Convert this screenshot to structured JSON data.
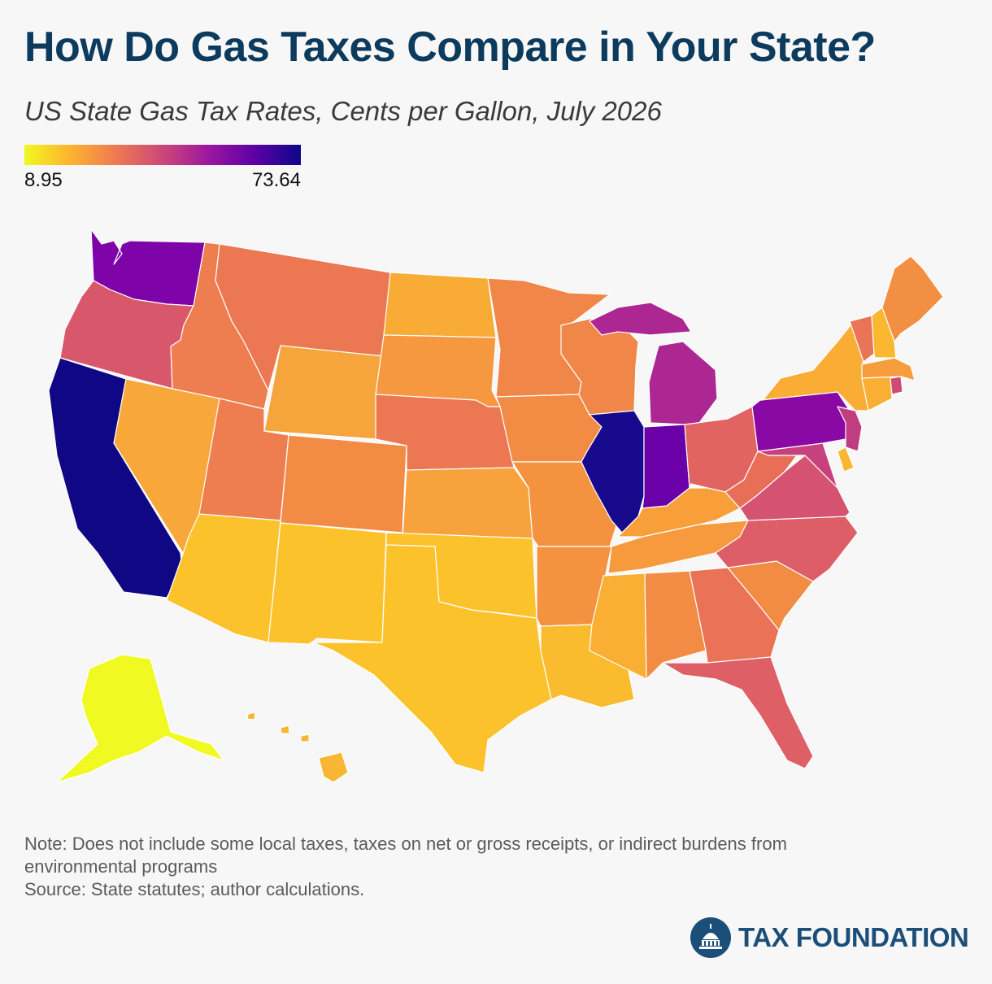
{
  "header": {
    "title": "How Do Gas Taxes Compare in Your State?",
    "subtitle": "US State Gas Tax Rates, Cents per Gallon, July 2026"
  },
  "legend": {
    "min_label": "8.95",
    "max_label": "73.64",
    "gradient": [
      "#f0f921",
      "#fdb32f",
      "#ed7953",
      "#cc4778",
      "#9c179e",
      "#5c01a6",
      "#0d0887"
    ]
  },
  "map": {
    "states": [
      {
        "name": "Washington",
        "color": "#7e03a8"
      },
      {
        "name": "Oregon",
        "color": "#d9576a"
      },
      {
        "name": "California",
        "color": "#100785"
      },
      {
        "name": "Nevada",
        "color": "#f8a83a"
      },
      {
        "name": "Idaho",
        "color": "#ee7d4f"
      },
      {
        "name": "Montana",
        "color": "#ec7853"
      },
      {
        "name": "Wyoming",
        "color": "#f6a53c"
      },
      {
        "name": "Utah",
        "color": "#ee7d4f"
      },
      {
        "name": "Arizona",
        "color": "#fbc22c"
      },
      {
        "name": "Colorado",
        "color": "#f28c44"
      },
      {
        "name": "New Mexico",
        "color": "#fbc22c"
      },
      {
        "name": "North Dakota",
        "color": "#f8ac36"
      },
      {
        "name": "South Dakota",
        "color": "#f59840"
      },
      {
        "name": "Nebraska",
        "color": "#ec7853"
      },
      {
        "name": "Kansas",
        "color": "#f7a23c"
      },
      {
        "name": "Oklahoma",
        "color": "#fbc22c"
      },
      {
        "name": "Texas",
        "color": "#fbc22c"
      },
      {
        "name": "Minnesota",
        "color": "#f08749"
      },
      {
        "name": "Iowa",
        "color": "#f28c44"
      },
      {
        "name": "Missouri",
        "color": "#f4923f"
      },
      {
        "name": "Arkansas",
        "color": "#f4923f"
      },
      {
        "name": "Louisiana",
        "color": "#fbbb2f"
      },
      {
        "name": "Wisconsin",
        "color": "#f08749"
      },
      {
        "name": "Illinois",
        "color": "#170a8c"
      },
      {
        "name": "Indiana",
        "color": "#6a00a8"
      },
      {
        "name": "Michigan",
        "color": "#ad2793"
      },
      {
        "name": "Ohio",
        "color": "#e16462"
      },
      {
        "name": "Kentucky",
        "color": "#f89f3a"
      },
      {
        "name": "Tennessee",
        "color": "#f79a3e"
      },
      {
        "name": "Mississippi",
        "color": "#f9af33"
      },
      {
        "name": "Alabama",
        "color": "#f28c44"
      },
      {
        "name": "Georgia",
        "color": "#ea7357"
      },
      {
        "name": "Florida",
        "color": "#de5f65"
      },
      {
        "name": "South Carolina",
        "color": "#f28c44"
      },
      {
        "name": "North Carolina",
        "color": "#dd5e66"
      },
      {
        "name": "Virginia",
        "color": "#d55270"
      },
      {
        "name": "West Virginia",
        "color": "#e96e58"
      },
      {
        "name": "Maryland",
        "color": "#c6417d"
      },
      {
        "name": "Delaware",
        "color": "#fbb62f"
      },
      {
        "name": "Pennsylvania",
        "color": "#8a09a5"
      },
      {
        "name": "New Jersey",
        "color": "#c13c80"
      },
      {
        "name": "New York",
        "color": "#f9ad35"
      },
      {
        "name": "Connecticut",
        "color": "#f9ae34"
      },
      {
        "name": "Rhode Island",
        "color": "#ce4a76"
      },
      {
        "name": "Massachusetts",
        "color": "#f69e3d"
      },
      {
        "name": "Vermont",
        "color": "#ea7457"
      },
      {
        "name": "New Hampshire",
        "color": "#fbb72f"
      },
      {
        "name": "Maine",
        "color": "#f38f43"
      },
      {
        "name": "Alaska",
        "color": "#f0f921"
      },
      {
        "name": "Hawaii",
        "color": "#f9b534"
      }
    ]
  },
  "footer": {
    "note": "Note: Does not include some local taxes, taxes on net or gross receipts, or indirect burdens from environmental programs",
    "source": "Source: State statutes; author calculations."
  },
  "brand": {
    "name": "TAX FOUNDATION",
    "color": "#1b4f7a"
  }
}
